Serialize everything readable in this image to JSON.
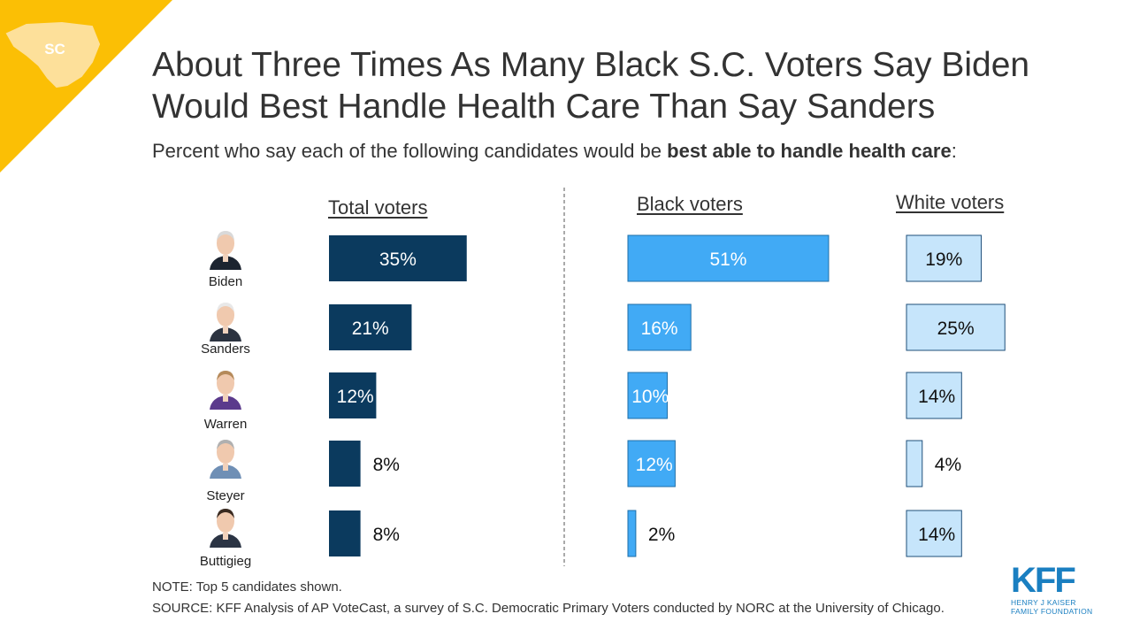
{
  "badge": {
    "state_abbr": "SC"
  },
  "title": "About Three Times As Many Black S.C. Voters Say Biden Would Best Handle Health Care Than Say Sanders",
  "subtitle": {
    "prefix": "Percent who say each of the following candidates would be ",
    "bold": "best able to handle health care",
    "suffix": ":"
  },
  "colors": {
    "total": "#0b3a5e",
    "black": "#41aaf5",
    "white": "#c6e5fb",
    "corner": "#fbbf05",
    "logo": "#1a7fc1"
  },
  "chart_data": {
    "type": "bar",
    "orientation": "horizontal",
    "categories": [
      "Biden",
      "Sanders",
      "Warren",
      "Steyer",
      "Buttigieg"
    ],
    "series": [
      {
        "name": "Total voters",
        "values": [
          35,
          21,
          12,
          8,
          8
        ],
        "labels": [
          "35%",
          "21%",
          "12%",
          "8%",
          "8%"
        ]
      },
      {
        "name": "Black voters",
        "values": [
          51,
          16,
          10,
          12,
          2
        ],
        "labels": [
          "51%",
          "16%",
          "10%",
          "12%",
          "2%"
        ]
      },
      {
        "name": "White voters",
        "values": [
          19,
          25,
          14,
          4,
          14
        ],
        "labels": [
          "19%",
          "25%",
          "14%",
          "4%",
          "14%"
        ]
      }
    ],
    "unit": "%"
  },
  "footer": {
    "note": "NOTE: Top 5 candidates shown.",
    "source": "SOURCE: KFF Analysis of AP VoteCast, a survey of S.C. Democratic Primary Voters conducted by NORC at the University of Chicago."
  },
  "logo": {
    "main": "KFF",
    "line1": "HENRY J KAISER",
    "line2": "FAMILY FOUNDATION"
  }
}
